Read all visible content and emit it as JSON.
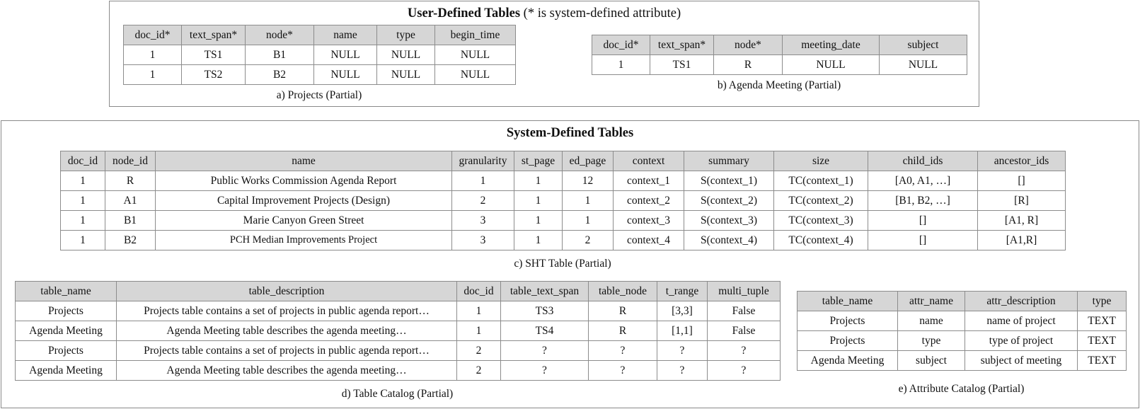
{
  "user_defined": {
    "title_bold": "User-Defined Tables",
    "title_rest": " (* is system-defined attribute)"
  },
  "projects_table": {
    "caption": "a) Projects (Partial)",
    "headers": [
      "doc_id*",
      "text_span*",
      "node*",
      "name",
      "type",
      "begin_time"
    ],
    "rows": [
      [
        "1",
        "TS1",
        "B1",
        "NULL",
        "NULL",
        "NULL"
      ],
      [
        "1",
        "TS2",
        "B2",
        "NULL",
        "NULL",
        "NULL"
      ]
    ]
  },
  "agenda_table": {
    "caption": "b) Agenda Meeting (Partial)",
    "headers": [
      "doc_id*",
      "text_span*",
      "node*",
      "meeting_date",
      "subject"
    ],
    "rows": [
      [
        "1",
        "TS1",
        "R",
        "NULL",
        "NULL"
      ]
    ]
  },
  "system_defined": {
    "title": "System-Defined Tables"
  },
  "sht_table": {
    "caption": "c) SHT Table (Partial)",
    "headers": [
      "doc_id",
      "node_id",
      "name",
      "granularity",
      "st_page",
      "ed_page",
      "context",
      "summary",
      "size",
      "child_ids",
      "ancestor_ids"
    ],
    "rows": [
      [
        "1",
        "R",
        "Public Works Commission Agenda Report",
        "1",
        "1",
        "12",
        "context_1",
        "S(context_1)",
        "TC(context_1)",
        "[A0, A1, …]",
        "[]"
      ],
      [
        "1",
        "A1",
        "Capital Improvement Projects (Design)",
        "2",
        "1",
        "1",
        "context_2",
        "S(context_2)",
        "TC(context_2)",
        "[B1, B2, …]",
        "[R]"
      ],
      [
        "1",
        "B1",
        "Marie Canyon Green Street",
        "3",
        "1",
        "1",
        "context_3",
        "S(context_3)",
        "TC(context_3)",
        "[]",
        "[A1, R]"
      ],
      [
        "1",
        "B2",
        "PCH Median Improvements Project",
        "3",
        "1",
        "2",
        "context_4",
        "S(context_4)",
        "TC(context_4)",
        "[]",
        "[A1,R]"
      ]
    ]
  },
  "table_catalog": {
    "caption": "d) Table Catalog (Partial)",
    "headers": [
      "table_name",
      "table_description",
      "doc_id",
      "table_text_span",
      "table_node",
      "t_range",
      "multi_tuple"
    ],
    "rows": [
      [
        "Projects",
        "Projects table contains a set of projects in public agenda report…",
        "1",
        "TS3",
        "R",
        "[3,3]",
        "False"
      ],
      [
        "Agenda Meeting",
        "Agenda Meeting table describes the agenda meeting…",
        "1",
        "TS4",
        "R",
        "[1,1]",
        "False"
      ],
      [
        "Projects",
        "Projects table contains a set of projects in public agenda report…",
        "2",
        "?",
        "?",
        "?",
        "?"
      ],
      [
        "Agenda Meeting",
        "Agenda Meeting table describes the agenda meeting…",
        "2",
        "?",
        "?",
        "?",
        "?"
      ]
    ]
  },
  "attribute_catalog": {
    "caption": "e) Attribute Catalog (Partial)",
    "headers": [
      "table_name",
      "attr_name",
      "attr_description",
      "type"
    ],
    "rows": [
      [
        "Projects",
        "name",
        "name of project",
        "TEXT"
      ],
      [
        "Projects",
        "type",
        "type of project",
        "TEXT"
      ],
      [
        "Agenda Meeting",
        "subject",
        "subject of meeting",
        "TEXT"
      ]
    ]
  }
}
